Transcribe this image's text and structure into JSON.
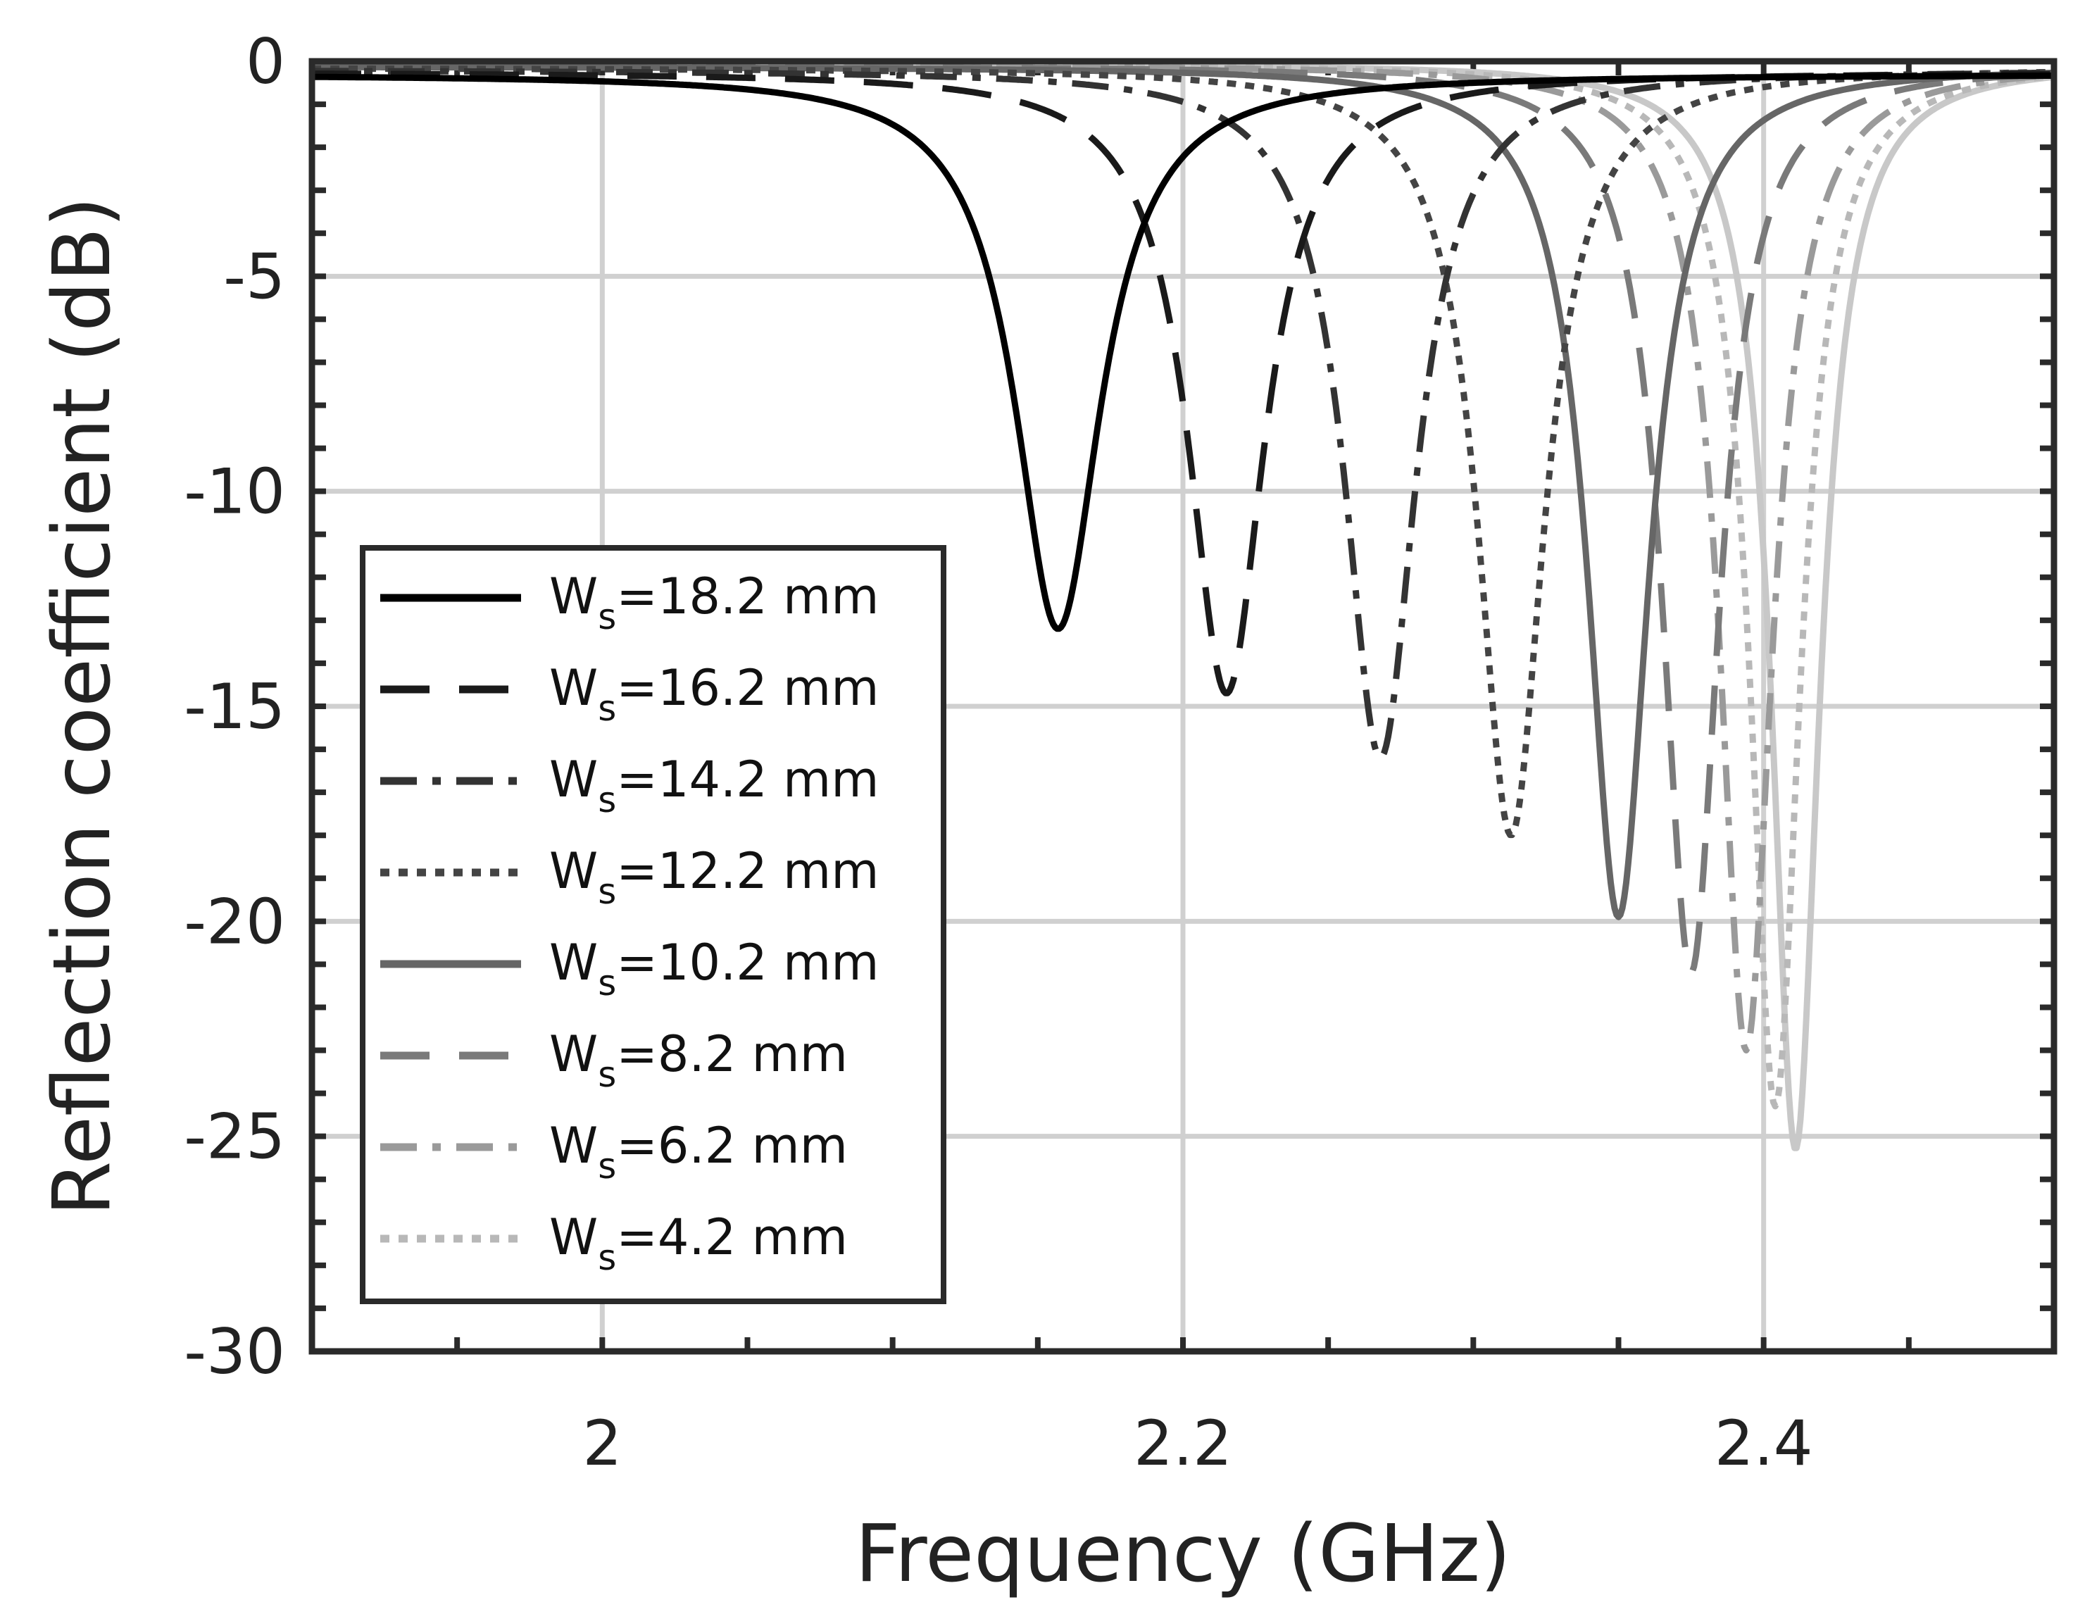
{
  "chart_data": {
    "type": "line",
    "title": "",
    "xlabel": "Frequency (GHz)",
    "ylabel": "Reflection coefficient (dB)",
    "xlim": [
      1.9,
      2.5
    ],
    "ylim": [
      -30,
      0
    ],
    "xticks": [
      2.0,
      2.2,
      2.4
    ],
    "xtick_labels": [
      "2",
      "2.2",
      "2.4"
    ],
    "yticks": [
      0,
      -5,
      -10,
      -15,
      -20,
      -25,
      -30
    ],
    "ytick_labels": [
      "0",
      "-5",
      "-10",
      "-15",
      "-20",
      "-25",
      "-30"
    ],
    "grid": true,
    "legend_position": "bottom-left",
    "series": [
      {
        "name": "Ws=18.2 mm",
        "label_main": "W",
        "label_sub": "s",
        "label_rest": "=18.2 mm",
        "f0": 2.157,
        "depth": -13.2,
        "bw": 0.018,
        "floor": -0.3,
        "color": "#000000",
        "dash": "solid"
      },
      {
        "name": "Ws=16.2 mm",
        "label_main": "W",
        "label_sub": "s",
        "label_rest": "=16.2 mm",
        "f0": 2.215,
        "depth": -14.7,
        "bw": 0.016,
        "floor": -0.25,
        "color": "#1a1a1a",
        "dash": "dash"
      },
      {
        "name": "Ws=14.2 mm",
        "label_main": "W",
        "label_sub": "s",
        "label_rest": "=14.2 mm",
        "f0": 2.268,
        "depth": -16.2,
        "bw": 0.015,
        "floor": -0.2,
        "color": "#333333",
        "dash": "dashdot"
      },
      {
        "name": "Ws=12.2 mm",
        "label_main": "W",
        "label_sub": "s",
        "label_rest": "=12.2 mm",
        "f0": 2.313,
        "depth": -18.0,
        "bw": 0.014,
        "floor": -0.15,
        "color": "#444444",
        "dash": "dot"
      },
      {
        "name": "Ws=10.2 mm",
        "label_main": "W",
        "label_sub": "s",
        "label_rest": "=10.2 mm",
        "f0": 2.35,
        "depth": -19.9,
        "bw": 0.013,
        "floor": -0.12,
        "color": "#666666",
        "dash": "solid"
      },
      {
        "name": "Ws=8.2 mm",
        "label_main": "W",
        "label_sub": "s",
        "label_rest": "=8.2 mm",
        "f0": 2.375,
        "depth": -21.2,
        "bw": 0.012,
        "floor": -0.1,
        "color": "#7a7a7a",
        "dash": "dash"
      },
      {
        "name": "Ws=6.2 mm",
        "label_main": "W",
        "label_sub": "s",
        "label_rest": "=6.2 mm",
        "f0": 2.394,
        "depth": -23.0,
        "bw": 0.011,
        "floor": -0.08,
        "color": "#9a9a9a",
        "dash": "dashdot"
      },
      {
        "name": "Ws=4.2 mm",
        "label_main": "W",
        "label_sub": "s",
        "label_rest": "=4.2 mm",
        "f0": 2.404,
        "depth": -24.3,
        "bw": 0.0105,
        "floor": -0.06,
        "color": "#b8b8b8",
        "dash": "dot"
      },
      {
        "name": "",
        "label_main": "",
        "label_sub": "",
        "label_rest": "",
        "f0": 2.411,
        "depth": -25.3,
        "bw": 0.01,
        "floor": -0.05,
        "color": "#c8c8c8",
        "dash": "solid",
        "in_legend": false
      }
    ]
  }
}
